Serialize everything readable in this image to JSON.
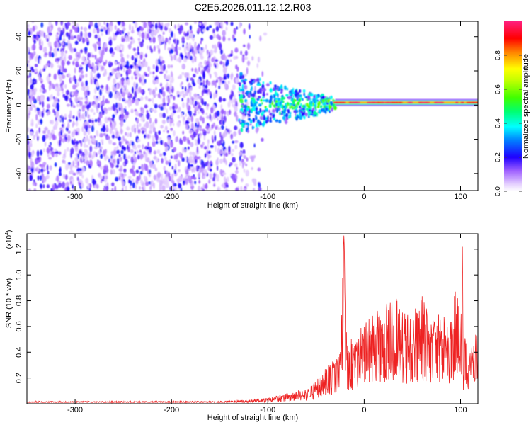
{
  "title": "C2E5.2026.011.12.12.R03",
  "chart_data": [
    {
      "type": "heatmap",
      "xlabel": "Height of straight line (km)",
      "ylabel": "Frequency (Hz)",
      "xlim": [
        -350,
        118
      ],
      "ylim": [
        -50,
        49
      ],
      "x_ticks": [
        -300,
        -200,
        -100,
        0,
        100
      ],
      "x_tick_labels": [
        "-300",
        "-200",
        "-100",
        "0",
        "100"
      ],
      "y_ticks": [
        -40,
        -20,
        0,
        20,
        40
      ],
      "y_tick_labels": [
        "-40",
        "-20",
        "0",
        "20",
        "40"
      ],
      "colorbar": {
        "label": "Normalized spectral amplitude",
        "range": [
          0,
          1
        ],
        "ticks": [
          0.0,
          0.2,
          0.4,
          0.6,
          0.8
        ],
        "tick_labels": [
          "0.0",
          "0.2",
          "0.4",
          "0.6",
          "0.8"
        ],
        "colors": [
          "#ffffff",
          "#d8b8ff",
          "#8a2be2",
          "#0000ff",
          "#00bfff",
          "#00ff7f",
          "#7fff00",
          "#ffff00",
          "#ff8c00",
          "#ff0000",
          "#ff1493"
        ]
      },
      "features": {
        "noise_region_x": [
          -350,
          -115
        ],
        "noise_amplitude": 0.2,
        "signal_line_frequency_hz": 1.5,
        "signal_onset_x": -130,
        "strong_line_x": [
          -30,
          118
        ]
      },
      "grid": false
    },
    {
      "type": "line",
      "xlabel": "Height of straight line (km)",
      "ylabel": "SNR (10 * v/v)",
      "y_multiplier_label": "(x10",
      "y_multiplier_exp": "4",
      "y_multiplier_close": ")",
      "xlim": [
        -350,
        118
      ],
      "ylim": [
        0,
        1.32
      ],
      "x_ticks": [
        -300,
        -200,
        -100,
        0,
        100
      ],
      "x_tick_labels": [
        "-300",
        "-200",
        "-100",
        "0",
        "100"
      ],
      "y_ticks": [
        0.2,
        0.4,
        0.6,
        0.8,
        1.0,
        1.2
      ],
      "y_tick_labels": [
        "0.2",
        "0.4",
        "0.6",
        "0.8",
        "1.0",
        "1.2"
      ],
      "series": [
        {
          "color": "#ee2222",
          "x": [
            -350,
            -200,
            -150,
            -120,
            -100,
            -80,
            -60,
            -50,
            -40,
            -30,
            -25,
            -21,
            -18,
            -15,
            -10,
            -5,
            0,
            10,
            20,
            30,
            35,
            40,
            50,
            55,
            60,
            65,
            70,
            80,
            90,
            95,
            100,
            102,
            103,
            104,
            106,
            110,
            118
          ],
          "y": [
            0.02,
            0.02,
            0.02,
            0.03,
            0.05,
            0.08,
            0.12,
            0.18,
            0.28,
            0.35,
            0.4,
            1.32,
            0.45,
            0.5,
            0.55,
            0.58,
            0.62,
            0.7,
            0.78,
            0.9,
            0.8,
            0.72,
            0.75,
            0.78,
            0.85,
            0.8,
            0.68,
            0.7,
            0.78,
            0.9,
            0.72,
            1.23,
            0.08,
            0.55,
            0.5,
            0.52,
            0.65
          ],
          "noise_peak_fraction": 0.8
        }
      ],
      "grid": false
    }
  ]
}
